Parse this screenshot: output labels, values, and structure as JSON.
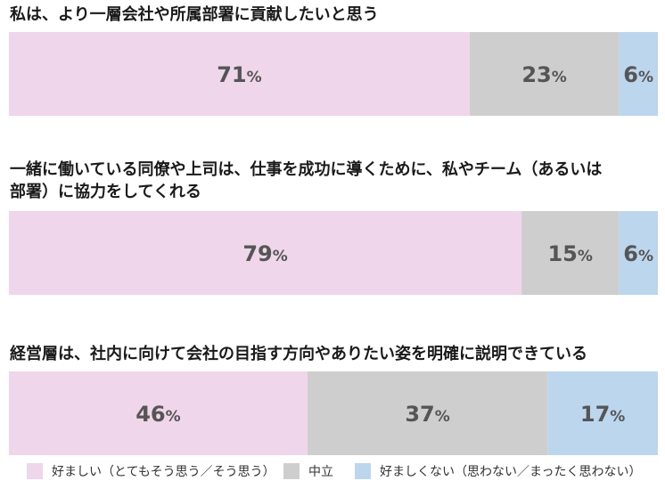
{
  "chart_data": {
    "type": "bar",
    "orientation": "horizontal-stacked-100",
    "series": [
      {
        "name": "好ましい（とてもそう思う／そう思う）",
        "color": "#f0d6ea"
      },
      {
        "name": "中立",
        "color": "#cfcecf"
      },
      {
        "name": "好ましくない（思わない／まったく思わない）",
        "color": "#bcd6ee"
      }
    ],
    "questions": [
      {
        "title_lines": [
          "私は、より一層会社や所属部署に貢献したいと思う"
        ],
        "values": [
          71,
          23,
          6
        ]
      },
      {
        "title_lines": [
          "一緒に働いている同僚や上司は、仕事を成功に導くために、私やチーム（あるいは",
          "部署）に協力をしてくれる"
        ],
        "values": [
          79,
          15,
          6
        ]
      },
      {
        "title_lines": [
          "経営層は、社内に向けて会社の目指す方向やありたい姿を明確に説明できている"
        ],
        "values": [
          46,
          37,
          17
        ]
      }
    ],
    "unit": "%",
    "legend_position": "bottom"
  }
}
